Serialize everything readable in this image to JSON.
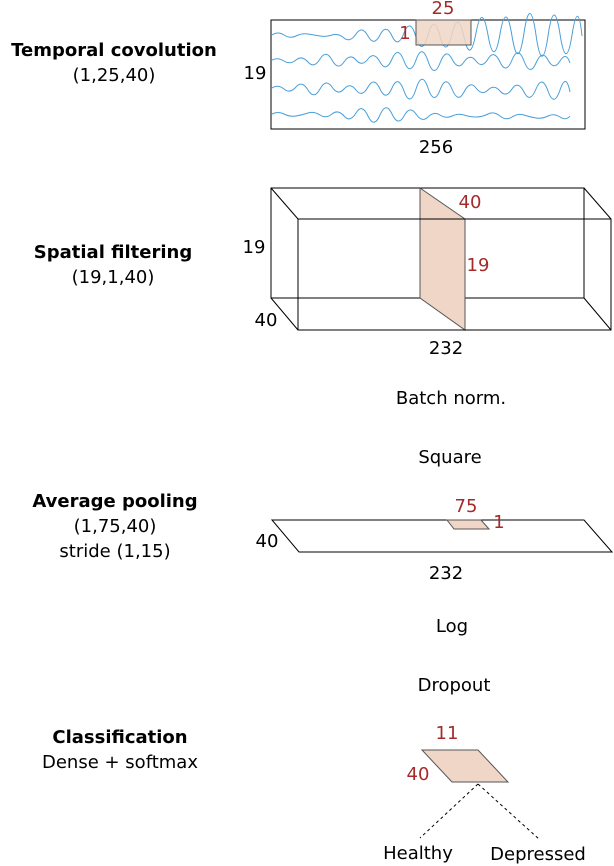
{
  "stages": {
    "temporal": {
      "title": "Temporal covolution",
      "params": "(1,25,40)"
    },
    "spatial": {
      "title": "Spatial filtering",
      "params": "(19,1,40)"
    },
    "pooling": {
      "title": "Average pooling",
      "params": "(1,75,40)",
      "stride": "stride (1,15)"
    },
    "classification": {
      "title": "Classification",
      "params": "Dense + softmax"
    }
  },
  "temporal_block": {
    "kernel_width": "25",
    "kernel_height": "1",
    "channels": "19",
    "samples": "256"
  },
  "spatial_block": {
    "filters": "40",
    "channels_kernel": "19",
    "channels": "19",
    "depth": "40",
    "width": "232"
  },
  "ops": {
    "batch_norm": "Batch norm.",
    "square": "Square",
    "log": "Log",
    "dropout": "Dropout"
  },
  "pool_block": {
    "kernel_width": "75",
    "kernel_height": "1",
    "depth": "40",
    "width": "232"
  },
  "dense_block": {
    "width": "11",
    "depth": "40"
  },
  "outputs": [
    "Healthy",
    "Depressed"
  ],
  "colors": {
    "kernel_fill": "#f0d6c6",
    "kernel_text": "#a52a2a",
    "eeg_wave": "#4a9fd8"
  }
}
